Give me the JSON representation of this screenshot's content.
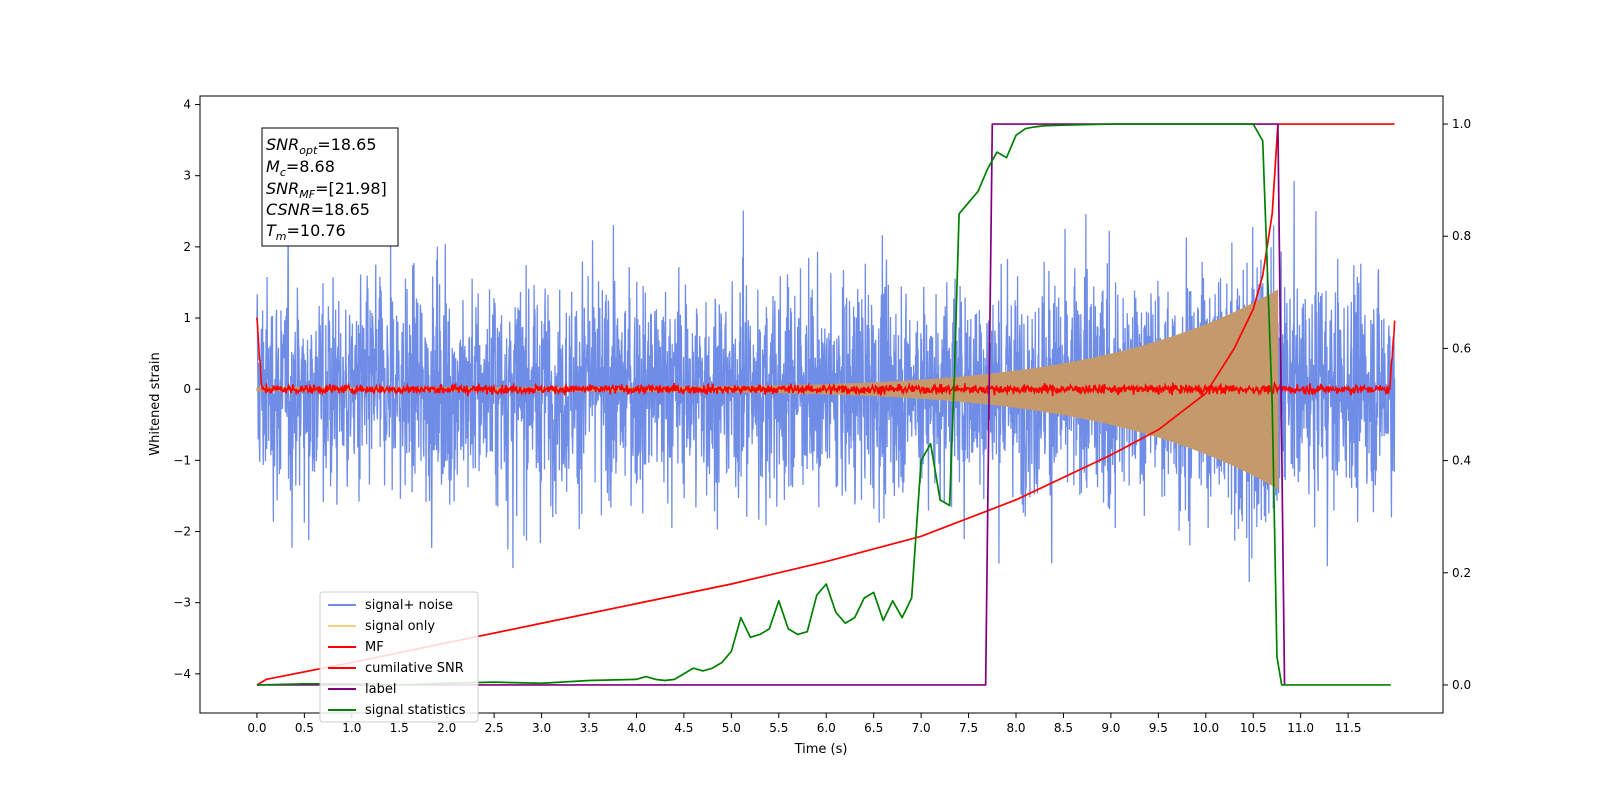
{
  "chart_data": {
    "type": "line",
    "xlabel": "Time (s)",
    "ylabel": "Whitened strain",
    "xlim": [
      -0.6,
      12.5
    ],
    "ylim": [
      -4.55,
      4.12
    ],
    "y2lim": [
      -0.05,
      1.05
    ],
    "x_ticks": [
      "0.0",
      "0.5",
      "1.0",
      "1.5",
      "2.0",
      "2.5",
      "3.0",
      "3.5",
      "4.0",
      "4.5",
      "5.0",
      "5.5",
      "6.0",
      "6.5",
      "7.0",
      "7.5",
      "8.0",
      "8.5",
      "9.0",
      "9.5",
      "10.0",
      "10.5",
      "11.0",
      "11.5"
    ],
    "y_ticks": [
      "−4",
      "−3",
      "−2",
      "−1",
      "0",
      "1",
      "2",
      "3",
      "4"
    ],
    "y2_ticks": [
      "0.0",
      "0.2",
      "0.4",
      "0.6",
      "0.8",
      "1.0"
    ],
    "grid": false,
    "legend_position": "lower-left",
    "annotation": {
      "snr_opt_label": "SNR",
      "snr_opt_sub": "opt",
      "snr_opt_value": "=18.65",
      "mc_label": "M",
      "mc_sub": "c",
      "mc_value": "=8.68",
      "snr_mf_label": "SNR",
      "snr_mf_sub": "MF",
      "snr_mf_value": "=[21.98]",
      "csnr_label": "CSNR",
      "csnr_value": "=18.65",
      "tm_label": "T",
      "tm_sub": "m",
      "tm_value": "=10.76"
    },
    "series": [
      {
        "name": "signal+ noise",
        "color": "#6f8de6",
        "axis": "left",
        "x_range": [
          0,
          11.99
        ],
        "noise_sigma": 0.9,
        "chirp_end": 10.76
      },
      {
        "name": "signal only",
        "color": "#c49a6c",
        "axis": "left",
        "x_range": [
          0,
          10.76
        ],
        "amp_start": 0.03,
        "amp_end": 1.4
      },
      {
        "name": "MF",
        "color": "#ff0000",
        "axis": "left",
        "x_range": [
          0,
          11.99
        ],
        "noise_level": 0.04,
        "start_value": 1.0,
        "end_value": 0.95
      },
      {
        "name": "cumilative SNR",
        "color": "#ff0000",
        "axis": "right",
        "x": [
          0,
          0.1,
          1,
          2,
          3,
          4,
          5,
          6,
          7,
          8,
          9,
          9.5,
          10,
          10.3,
          10.5,
          10.6,
          10.7,
          10.76,
          11.99
        ],
        "y": [
          0.0,
          0.01,
          0.04,
          0.075,
          0.11,
          0.145,
          0.18,
          0.22,
          0.265,
          0.33,
          0.41,
          0.455,
          0.52,
          0.6,
          0.67,
          0.73,
          0.84,
          1.0,
          1.0
        ]
      },
      {
        "name": "label",
        "color": "#800080",
        "axis": "right",
        "x": [
          0,
          7.68,
          7.75,
          10.76,
          10.83
        ],
        "y": [
          0,
          0,
          1,
          1,
          0
        ]
      },
      {
        "name": "signal statistics",
        "color": "#008000",
        "axis": "right",
        "x": [
          0,
          0.5,
          1,
          1.5,
          2,
          2.5,
          3,
          3.5,
          4,
          4.1,
          4.2,
          4.3,
          4.4,
          4.5,
          4.6,
          4.7,
          4.8,
          4.9,
          5.0,
          5.1,
          5.2,
          5.3,
          5.4,
          5.5,
          5.6,
          5.7,
          5.8,
          5.9,
          6.0,
          6.1,
          6.2,
          6.3,
          6.4,
          6.5,
          6.6,
          6.7,
          6.8,
          6.9,
          7.0,
          7.1,
          7.2,
          7.3,
          7.35,
          7.4,
          7.5,
          7.6,
          7.7,
          7.8,
          7.9,
          8.0,
          8.1,
          8.2,
          8.3,
          8.5,
          9.0,
          9.5,
          10.0,
          10.5,
          10.6,
          10.7,
          10.75,
          10.8,
          10.85,
          11.0,
          11.5,
          11.95
        ],
        "y": [
          0.0,
          0.002,
          0.002,
          0.0,
          0.003,
          0.005,
          0.003,
          0.008,
          0.01,
          0.015,
          0.01,
          0.008,
          0.01,
          0.02,
          0.03,
          0.025,
          0.03,
          0.04,
          0.06,
          0.12,
          0.085,
          0.09,
          0.1,
          0.15,
          0.1,
          0.09,
          0.095,
          0.16,
          0.18,
          0.13,
          0.11,
          0.12,
          0.155,
          0.165,
          0.115,
          0.15,
          0.12,
          0.155,
          0.4,
          0.43,
          0.33,
          0.32,
          0.55,
          0.84,
          0.86,
          0.88,
          0.92,
          0.95,
          0.94,
          0.98,
          0.992,
          0.995,
          0.997,
          0.998,
          1.0,
          1.0,
          1.0,
          1.0,
          0.97,
          0.5,
          0.05,
          0.0,
          0.0,
          0.0,
          0.0,
          0.0
        ]
      }
    ]
  }
}
